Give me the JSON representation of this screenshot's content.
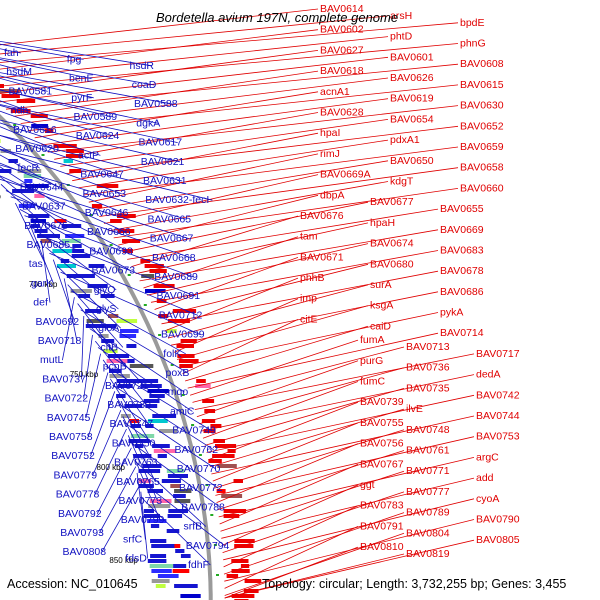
{
  "title": "Bordetella avium 197N, complete genome",
  "footer": {
    "accession": "Accession: NC_010645",
    "summary": "Topology: circular; Length: 3,732,255 bp; Genes: 3,455"
  },
  "ticks": [
    "550 kbp",
    "600 kbp",
    "650 kbp",
    "700 kbp",
    "750 kbp",
    "800 kbp",
    "850 kbp"
  ],
  "right_labels": [
    "BAV0614",
    "arsH",
    "bpdE",
    "BAV0602",
    "phtD",
    "phnG",
    "BAV0627",
    "BAV0601",
    "BAV0608",
    "BAV0618",
    "BAV0626",
    "BAV0615",
    "acnA1",
    "BAV0619",
    "BAV0630",
    "BAV0628",
    "BAV0654",
    "BAV0652",
    "hpaI",
    "pdxA1",
    "BAV0659",
    "rimJ",
    "BAV0650",
    "BAV0658",
    "BAV0669A",
    "kdgT",
    "BAV0660",
    "dbpA",
    "BAV0677",
    "BAV0655",
    "BAV0676",
    "hpaH",
    "BAV0669",
    "tam",
    "BAV0674",
    "BAV0683",
    "BAV0671",
    "BAV0680",
    "BAV0678",
    "phhB",
    "surA",
    "BAV0686",
    "imp",
    "ksgA",
    "pykA",
    "citE",
    "caiD",
    "BAV0714",
    "fumA",
    "BAV0713",
    "BAV0717",
    "purG",
    "BAV0736",
    "dedA",
    "fumC",
    "BAV0735",
    "BAV0742",
    "BAV0739",
    "ilvE",
    "BAV0744",
    "BAV0755",
    "BAV0748",
    "BAV0753",
    "BAV0756",
    "BAV0761",
    "argC",
    "BAV0767",
    "BAV0771",
    "add",
    "ggt",
    "BAV0777",
    "cyoA",
    "BAV0783",
    "BAV0789",
    "BAV0790",
    "BAV0791",
    "BAV0804",
    "BAV0805",
    "BAV0810",
    "BAV0819"
  ],
  "left_labels": [
    "fah",
    "fpg",
    "hsdR",
    "hsdM",
    "benE",
    "coaD",
    "BAV0581",
    "pyrF",
    "BAV0588",
    "ndh",
    "BAV0589",
    "dgkA",
    "BAV0616",
    "BAV0624",
    "BAV0617",
    "BAV0620",
    "actP",
    "BAV0621",
    "fecR",
    "BAV0647",
    "BAV0631",
    "BAV0644",
    "BAV0653",
    "BAV0632-fecI",
    "BAV0637",
    "BAV0646",
    "BAV0665",
    "BAV0675",
    "BAV0666",
    "BAV0667",
    "BAV0685",
    "BAV0693",
    "BAV0668",
    "tas",
    "BAV0673",
    "BAV0689",
    "garK",
    "glyQ",
    "BAV0691",
    "def",
    "glyS",
    "BAV0712",
    "BAV0692",
    "gloA",
    "BAV0699",
    "BAV0718",
    "citB",
    "folK",
    "mutL",
    "pcnB",
    "poxB",
    "BAV0737",
    "BAV0721",
    "mqo",
    "BAV0722",
    "BAV0730",
    "amiC",
    "BAV0745",
    "BAV0747",
    "BAV0749",
    "BAV0758",
    "BAV0750",
    "BAV0762",
    "BAV0752",
    "BAV0763",
    "BAV0770",
    "BAV0779",
    "BAV0765",
    "BAV0772",
    "BAV0778",
    "BAV0773",
    "BAV0788",
    "BAV0792",
    "BAV0799",
    "srfB",
    "BAV0793",
    "srfC",
    "BAV0794",
    "BAV0808",
    "fdsD",
    "fdhF"
  ]
}
